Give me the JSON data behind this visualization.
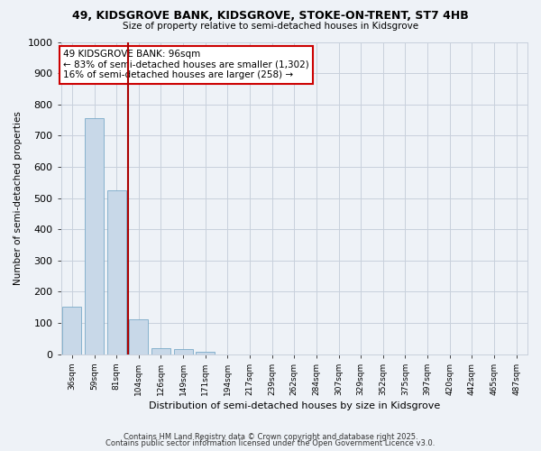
{
  "title1": "49, KIDSGROVE BANK, KIDSGROVE, STOKE-ON-TRENT, ST7 4HB",
  "title2": "Size of property relative to semi-detached houses in Kidsgrove",
  "xlabel": "Distribution of semi-detached houses by size in Kidsgrove",
  "ylabel": "Number of semi-detached properties",
  "categories": [
    "36sqm",
    "59sqm",
    "81sqm",
    "104sqm",
    "126sqm",
    "149sqm",
    "171sqm",
    "194sqm",
    "217sqm",
    "239sqm",
    "262sqm",
    "284sqm",
    "307sqm",
    "329sqm",
    "352sqm",
    "375sqm",
    "397sqm",
    "420sqm",
    "442sqm",
    "465sqm",
    "487sqm"
  ],
  "values": [
    152,
    757,
    525,
    113,
    20,
    15,
    7,
    0,
    0,
    0,
    0,
    0,
    0,
    0,
    0,
    0,
    0,
    0,
    0,
    0,
    0
  ],
  "bar_color": "#c8d8e8",
  "bar_edge_color": "#7aaac8",
  "property_line_color": "#aa0000",
  "annotation_line1": "49 KIDSGROVE BANK: 96sqm",
  "annotation_line2": "← 83% of semi-detached houses are smaller (1,302)",
  "annotation_line3": "16% of semi-detached houses are larger (258) →",
  "annotation_box_color": "white",
  "annotation_box_edge_color": "#cc0000",
  "ylim": [
    0,
    1000
  ],
  "yticks": [
    0,
    100,
    200,
    300,
    400,
    500,
    600,
    700,
    800,
    900,
    1000
  ],
  "bg_color": "#eef2f7",
  "plot_bg_color": "#eef2f7",
  "grid_color": "#c8d0dc",
  "footer1": "Contains HM Land Registry data © Crown copyright and database right 2025.",
  "footer2": "Contains public sector information licensed under the Open Government Licence v3.0."
}
